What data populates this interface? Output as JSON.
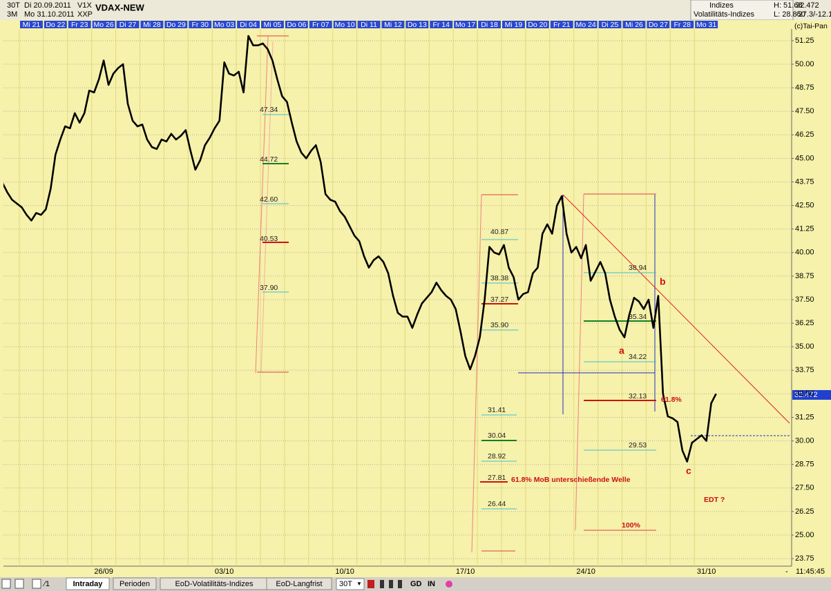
{
  "header": {
    "period": "30T",
    "from": "Di 20.09.2011",
    "code1": "V1X",
    "name": "VDAX-NEW",
    "range": "3M",
    "to": "Mo 31.10.2011",
    "code2": "XXP",
    "group": "Indizes",
    "subgroup": "Volatilitäts-Indizes",
    "high": "H: 51.68",
    "low": "L: 28.850",
    "last": "32.472",
    "change": "-27.3/-12.1",
    "copyright": "(c)Tai-Pan"
  },
  "chart_data": {
    "type": "line",
    "categories": [
      null,
      "Mi 21",
      "Do 22",
      "Fr 23",
      "Mo 26",
      "Di 27",
      "Mi 28",
      "Do 29",
      "Fr 30",
      "Mo 03",
      "Di 04",
      "Mi 05",
      "Do 06",
      "Fr 07",
      "Mo 10",
      "Di 11",
      "Mi 12",
      "Do 13",
      "Fr 14",
      "Mo 17",
      "Di 18",
      "Mi 19",
      "Do 20",
      "Fr 21",
      "Mo 24",
      "Di 25",
      "Mi 26",
      "Do 27",
      "Fr 28",
      "Mo 31"
    ],
    "series": [
      {
        "color": "#000000",
        "values": [
          [
            44.6,
            43.7,
            43.2,
            42.8,
            42.6
          ],
          [
            42.4,
            42.0,
            41.7,
            42.1,
            42.0
          ],
          [
            42.3,
            43.4,
            45.2,
            46.0,
            46.7
          ],
          [
            46.6,
            47.4,
            46.9,
            47.4,
            48.6
          ],
          [
            48.5,
            49.2,
            50.2,
            48.9,
            49.5
          ],
          [
            49.8,
            50.0,
            47.9,
            47.0,
            46.7
          ],
          [
            46.8,
            46.0,
            45.6,
            45.5,
            46.0
          ],
          [
            45.9,
            46.3,
            46.0,
            46.2,
            46.5
          ],
          [
            45.4,
            44.4,
            44.9,
            45.7,
            46.1
          ],
          [
            46.6,
            47.0,
            50.1,
            49.5,
            49.4
          ],
          [
            49.6,
            48.5,
            51.5,
            51.0,
            51.0
          ],
          [
            51.1,
            50.8,
            50.2,
            49.2,
            48.3
          ],
          [
            48.0,
            46.9,
            45.9,
            45.3,
            45.0
          ],
          [
            45.4,
            45.7,
            44.8,
            43.1,
            42.8
          ],
          [
            42.7,
            42.2,
            41.9,
            41.4,
            40.9
          ],
          [
            40.6,
            39.8,
            39.2,
            39.6,
            39.8
          ],
          [
            39.5,
            38.9,
            37.7,
            36.8,
            36.6
          ],
          [
            36.6,
            36.0,
            36.7,
            37.3,
            37.6
          ],
          [
            37.9,
            38.4,
            38.0,
            37.7,
            37.5
          ],
          [
            37.0,
            35.8,
            34.5,
            33.8,
            34.5
          ],
          [
            35.5,
            37.5,
            40.3,
            40.0,
            39.9
          ],
          [
            40.4,
            39.2,
            38.7,
            37.5,
            37.8
          ],
          [
            37.9,
            38.9,
            39.2,
            41.0,
            41.5
          ],
          [
            41.0,
            42.5,
            43.0,
            41.0,
            40.0
          ],
          [
            40.3,
            39.7,
            40.4,
            38.5,
            39.0
          ],
          [
            39.5,
            38.9,
            37.5,
            36.6,
            35.9
          ],
          [
            35.5,
            36.7,
            37.6,
            37.4,
            37.0
          ],
          [
            37.5,
            36.0,
            37.7,
            32.5,
            31.3
          ],
          [
            31.2,
            31.0,
            29.5,
            28.9,
            29.9
          ],
          [
            30.1,
            30.3,
            30.0,
            32.0,
            32.5
          ]
        ]
      }
    ],
    "ylim": [
      23.35,
      51.87
    ],
    "yticks": [
      23.75,
      {
        "value": 25,
        "label": "25.00"
      },
      26.25,
      {
        "value": 27.5,
        "label": "27.50"
      },
      28.75,
      {
        "value": 30,
        "label": "30.00"
      },
      31.25,
      {
        "value": 32.5,
        "label": "32.50"
      },
      33.75,
      {
        "value": 35,
        "label": "35.00"
      },
      36.25,
      {
        "value": 37.5,
        "label": "37.50"
      },
      38.75,
      {
        "value": 40,
        "label": "40.00"
      },
      41.25,
      {
        "value": 42.5,
        "label": "42.50"
      },
      43.75,
      {
        "value": 45,
        "label": "45.00"
      },
      46.25,
      {
        "value": 47.5,
        "label": "47.50"
      },
      48.75,
      {
        "value": 50,
        "label": "50.00"
      },
      51.25
    ],
    "grid": true,
    "xtick_labels": [
      "26/09",
      "03/10",
      "10/10",
      "17/10",
      "24/10",
      "31/10"
    ],
    "price_marker": "32.472",
    "annotations": [
      "47.34",
      "44.72",
      "42.60",
      "40.53",
      "37.90",
      "40.87",
      "38.38",
      "37.27",
      "35.90",
      "31.41",
      "30.04",
      "28.92",
      "27.81",
      "26.44",
      "38.94",
      "35.34",
      "34.22",
      "32.13",
      "29.53",
      "61.8%",
      "61.8% MoB unterschießende Welle",
      "100%",
      "a",
      "b",
      "c",
      "EDT ?"
    ],
    "time": "11:45:45"
  },
  "toolbar": {
    "tabs": [
      "Intraday",
      "Perioden",
      "EoD-Volatilitäts-Indizes",
      "EoD-Langfrist"
    ],
    "interval": "30T",
    "buttons": [
      "GD",
      "IN"
    ]
  }
}
